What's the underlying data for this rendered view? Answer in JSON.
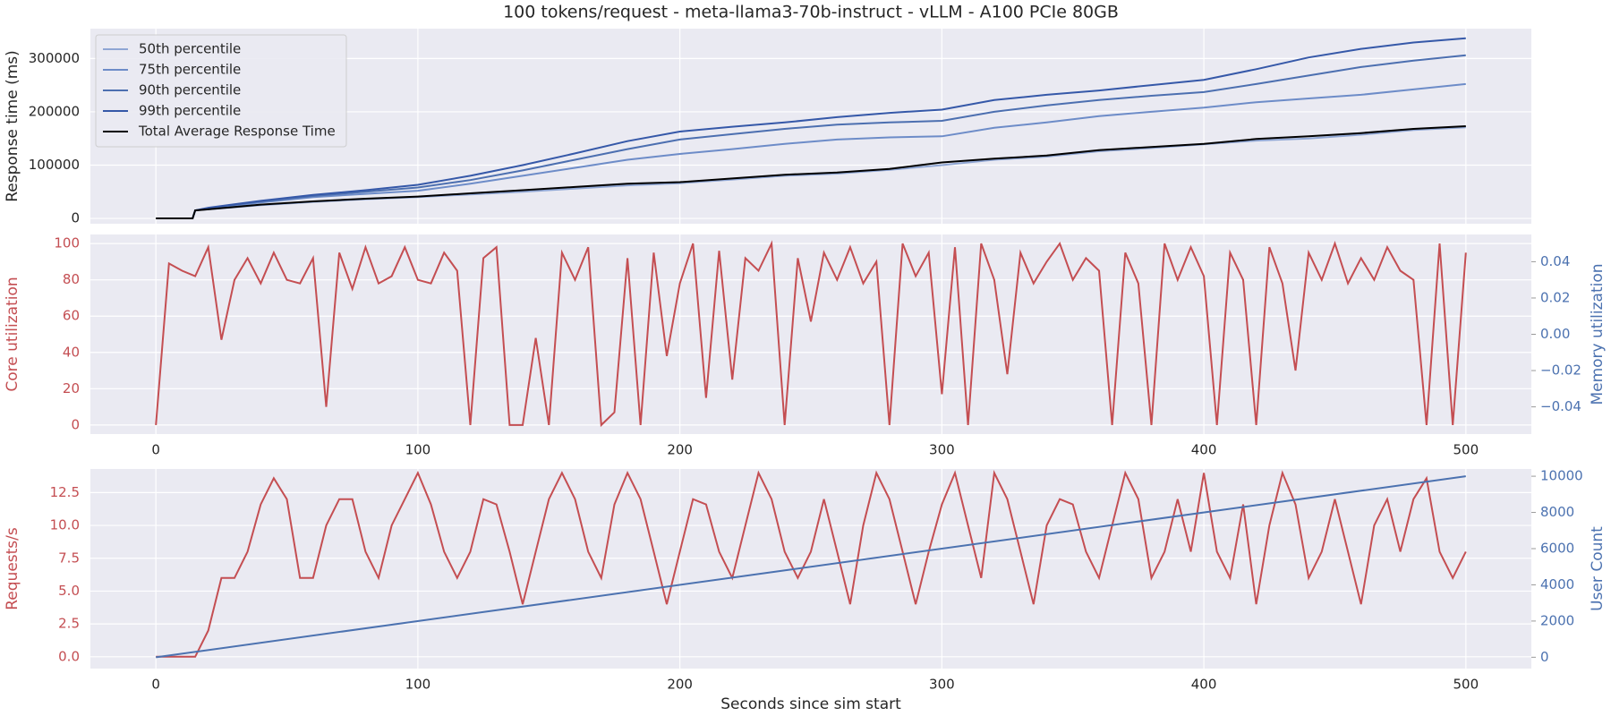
{
  "chart_data": [
    {
      "type": "line",
      "title": "100 tokens/request - meta-llama3-70b-instruct - vLLM - A100 PCIe 80GB",
      "ylabel": "Response time (ms)",
      "xlim": [
        -25,
        525
      ],
      "ylim": [
        -10000,
        356000
      ],
      "xticks": [
        0,
        100,
        200,
        300,
        400,
        500
      ],
      "show_xtick_labels": false,
      "yticks": [
        0,
        100000,
        200000,
        300000
      ],
      "grid": true,
      "legend": "upper left",
      "x": [
        0,
        14,
        15,
        20,
        40,
        60,
        80,
        100,
        120,
        140,
        160,
        180,
        200,
        220,
        240,
        260,
        280,
        300,
        320,
        340,
        360,
        380,
        400,
        420,
        440,
        460,
        480,
        500
      ],
      "series": [
        {
          "name": "50th percentile",
          "color": "#8fa6d4",
          "values": [
            0,
            0,
            15000,
            17000,
            25000,
            31000,
            36000,
            40000,
            45000,
            50000,
            56000,
            62000,
            66000,
            73000,
            80000,
            84000,
            91000,
            100000,
            110000,
            116000,
            126000,
            132000,
            139000,
            146000,
            150000,
            157000,
            166000,
            171000
          ]
        },
        {
          "name": "75th percentile",
          "color": "#6d8cc8",
          "values": [
            0,
            0,
            15000,
            18000,
            30000,
            40000,
            46000,
            52000,
            65000,
            80000,
            95000,
            110000,
            121000,
            130000,
            140000,
            148000,
            152000,
            154000,
            170000,
            180000,
            192000,
            200000,
            208000,
            218000,
            225000,
            232000,
            242000,
            252000
          ]
        },
        {
          "name": "90th percentile",
          "color": "#4c6fb0",
          "values": [
            0,
            0,
            15000,
            19000,
            32000,
            42000,
            50000,
            58000,
            72000,
            90000,
            110000,
            130000,
            148000,
            158000,
            168000,
            176000,
            180000,
            183000,
            200000,
            212000,
            222000,
            230000,
            237000,
            252000,
            268000,
            284000,
            296000,
            306000
          ]
        },
        {
          "name": "99th percentile",
          "color": "#3558a8",
          "values": [
            0,
            0,
            15000,
            20000,
            33000,
            44000,
            53000,
            63000,
            80000,
            100000,
            122000,
            145000,
            163000,
            172000,
            180000,
            190000,
            198000,
            204000,
            222000,
            232000,
            240000,
            250000,
            260000,
            280000,
            302000,
            318000,
            330000,
            338000
          ]
        },
        {
          "name": "Total Average Response Time",
          "color": "#000000",
          "values": [
            0,
            0,
            15000,
            17000,
            26000,
            32000,
            37000,
            41000,
            47000,
            53000,
            59000,
            65000,
            68000,
            75000,
            82000,
            86000,
            93000,
            105000,
            112000,
            118000,
            128000,
            134000,
            140000,
            149000,
            154000,
            160000,
            168000,
            173000
          ]
        }
      ]
    },
    {
      "type": "line",
      "ylabel": "Core utilization",
      "y2label": "Memory utilization",
      "y2color": "#4c72b0",
      "xlim": [
        -25,
        525
      ],
      "ylim": [
        -5,
        105
      ],
      "y2lim": [
        -0.055,
        0.055
      ],
      "xticks": [
        0,
        100,
        200,
        300,
        400,
        500
      ],
      "show_xtick_labels": true,
      "yticks": [
        0,
        20,
        40,
        60,
        80,
        100
      ],
      "y2ticks": [
        {
          "value": -0.04,
          "label": "−0.04"
        },
        {
          "value": -0.02,
          "label": "−0.02"
        },
        {
          "value": 0,
          "label": "0.00"
        },
        {
          "value": 0.02,
          "label": "0.02"
        },
        {
          "value": 0.04,
          "label": "0.04"
        }
      ],
      "grid": true,
      "x": [
        0,
        5,
        10,
        15,
        20,
        25,
        30,
        35,
        40,
        45,
        50,
        55,
        60,
        65,
        70,
        75,
        80,
        85,
        90,
        95,
        100,
        105,
        110,
        115,
        120,
        125,
        130,
        135,
        140,
        145,
        150,
        155,
        160,
        165,
        170,
        175,
        180,
        185,
        190,
        195,
        200,
        205,
        210,
        215,
        220,
        225,
        230,
        235,
        240,
        245,
        250,
        255,
        260,
        265,
        270,
        275,
        280,
        285,
        290,
        295,
        300,
        305,
        310,
        315,
        320,
        325,
        330,
        335,
        340,
        345,
        350,
        355,
        360,
        365,
        370,
        375,
        380,
        385,
        390,
        395,
        400,
        405,
        410,
        415,
        420,
        425,
        430,
        435,
        440,
        445,
        450,
        455,
        460,
        465,
        470,
        475,
        480,
        485,
        490,
        495,
        500
      ],
      "series": [
        {
          "color": "#c44e52",
          "values": [
            0,
            89,
            85,
            82,
            98,
            47,
            80,
            92,
            78,
            95,
            80,
            78,
            92,
            10,
            95,
            75,
            98,
            78,
            82,
            98,
            80,
            78,
            95,
            85,
            0,
            92,
            98,
            0,
            0,
            48,
            0,
            95,
            80,
            98,
            0,
            7,
            92,
            0,
            95,
            38,
            78,
            100,
            15,
            96,
            25,
            92,
            85,
            100,
            0,
            92,
            57,
            95,
            80,
            98,
            78,
            90,
            0,
            100,
            82,
            95,
            17,
            98,
            0,
            100,
            80,
            28,
            95,
            78,
            90,
            100,
            80,
            92,
            85,
            0,
            95,
            78,
            0,
            100,
            80,
            98,
            82,
            0,
            95,
            80,
            0,
            98,
            78,
            30,
            95,
            80,
            100,
            78,
            92,
            80,
            98,
            85,
            80,
            0,
            100,
            0,
            95
          ]
        }
      ]
    },
    {
      "type": "line",
      "ylabel": "Requests/s",
      "y2label": "User Count",
      "xlabel": "Seconds since sim start",
      "xlim": [
        -25,
        525
      ],
      "ylim": [
        -0.9,
        14.3
      ],
      "y2lim": [
        -625,
        10400
      ],
      "xticks": [
        0,
        100,
        200,
        300,
        400,
        500
      ],
      "show_xtick_labels": true,
      "yticks": [
        {
          "value": 0,
          "label": "0.0"
        },
        2.5,
        {
          "value": 5,
          "label": "5.0"
        },
        7.5,
        {
          "value": 10,
          "label": "10.0"
        },
        12.5
      ],
      "y2ticks": [
        0,
        2000,
        4000,
        6000,
        8000,
        10000
      ],
      "grid": true,
      "x": [
        0,
        5,
        10,
        15,
        20,
        25,
        30,
        35,
        40,
        45,
        50,
        55,
        60,
        65,
        70,
        75,
        80,
        85,
        90,
        95,
        100,
        105,
        110,
        115,
        120,
        125,
        130,
        135,
        140,
        145,
        150,
        155,
        160,
        165,
        170,
        175,
        180,
        185,
        190,
        195,
        200,
        205,
        210,
        215,
        220,
        225,
        230,
        235,
        240,
        245,
        250,
        255,
        260,
        265,
        270,
        275,
        280,
        285,
        290,
        295,
        300,
        305,
        310,
        315,
        320,
        325,
        330,
        335,
        340,
        345,
        350,
        355,
        360,
        365,
        370,
        375,
        380,
        385,
        390,
        395,
        400,
        405,
        410,
        415,
        420,
        425,
        430,
        435,
        440,
        445,
        450,
        455,
        460,
        465,
        470,
        475,
        480,
        485,
        490,
        495,
        500
      ],
      "series": [
        {
          "color": "#c44e52",
          "values": [
            0,
            0,
            0,
            0,
            2,
            6,
            6,
            8,
            11.6,
            13.6,
            12,
            6,
            6,
            10,
            12,
            12,
            8,
            6,
            10,
            12,
            14,
            11.6,
            8,
            6,
            8,
            12,
            11.6,
            8,
            4,
            8,
            12,
            14,
            12,
            8,
            6,
            11.6,
            14,
            12,
            8,
            4,
            8,
            12,
            11.6,
            8,
            6,
            10,
            14,
            12,
            8,
            6,
            8,
            12,
            8,
            4,
            10,
            14,
            12,
            8,
            4,
            8,
            11.6,
            14,
            10,
            6,
            14,
            12,
            8,
            4,
            10,
            12,
            11.6,
            8,
            6,
            10,
            14,
            12,
            6,
            8,
            12,
            8,
            14,
            8,
            6,
            11.6,
            4,
            10,
            14,
            11.6,
            6,
            8,
            12,
            8,
            4,
            10,
            12,
            8,
            12,
            13.6,
            8,
            6,
            8
          ]
        },
        {
          "color": "#4c72b0",
          "axis": "y2",
          "x": [
            0,
            500
          ],
          "values": [
            0,
            10000
          ]
        }
      ]
    }
  ]
}
